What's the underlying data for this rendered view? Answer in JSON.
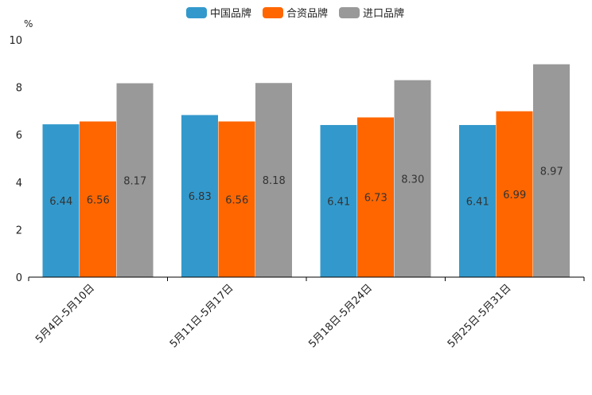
{
  "chart_data": {
    "type": "bar",
    "categories": [
      "5月4日-5月10日",
      "5月11日-5月17日",
      "5月18日-5月24日",
      "5月25日-5月31日"
    ],
    "series": [
      {
        "name": "中国品牌",
        "color": "#3399cc",
        "values": [
          6.44,
          6.83,
          6.41,
          6.41
        ]
      },
      {
        "name": "合资品牌",
        "color": "#ff6600",
        "values": [
          6.56,
          6.56,
          6.73,
          6.99
        ]
      },
      {
        "name": "进口品牌",
        "color": "#999999",
        "values": [
          8.17,
          8.18,
          8.3,
          8.97
        ]
      }
    ],
    "ylabel": "%",
    "ylim": [
      0,
      10
    ],
    "yticks": [
      0,
      2,
      4,
      6,
      8,
      10
    ],
    "legend_position": "top-center",
    "grid": false
  }
}
